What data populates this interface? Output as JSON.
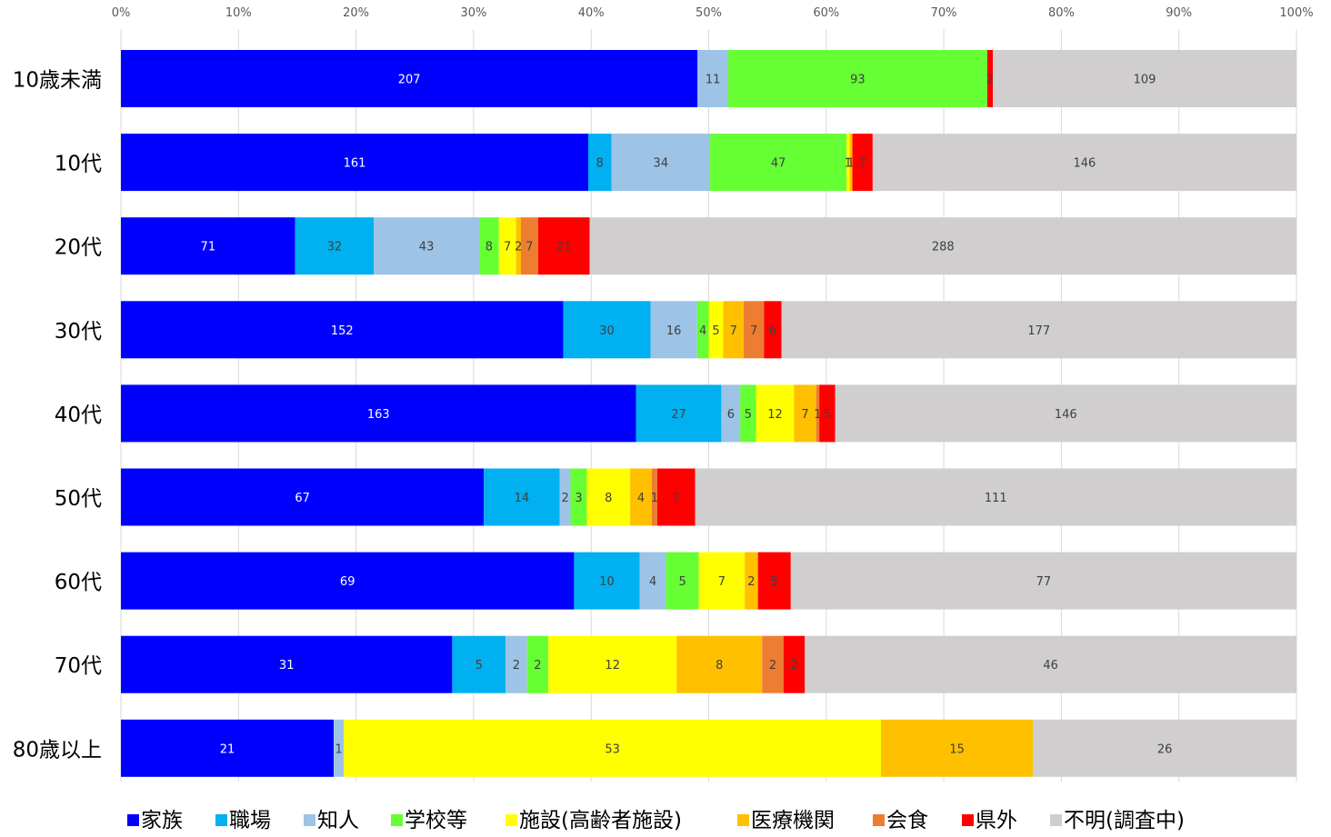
{
  "chart_data": {
    "type": "bar",
    "orientation": "horizontal",
    "stacking": "percent",
    "title": "",
    "xlabel": "",
    "ylabel": "",
    "xlim": [
      0,
      100
    ],
    "x_ticks": [
      "0%",
      "10%",
      "20%",
      "30%",
      "40%",
      "50%",
      "60%",
      "70%",
      "80%",
      "90%",
      "100%"
    ],
    "x_axis_position": "top",
    "grid": "vertical",
    "legend_position": "bottom",
    "categories": [
      "10歳未満",
      "10代",
      "20代",
      "30代",
      "40代",
      "50代",
      "60代",
      "70代",
      "80歳以上"
    ],
    "series": [
      {
        "name": "家族",
        "color": "#0000FF",
        "values": [
          207,
          161,
          71,
          152,
          163,
          67,
          69,
          31,
          21
        ]
      },
      {
        "name": "職場",
        "color": "#00B0F0",
        "values": [
          0,
          8,
          32,
          30,
          27,
          14,
          10,
          5,
          0
        ]
      },
      {
        "name": "知人",
        "color": "#9DC3E6",
        "values": [
          11,
          34,
          43,
          16,
          6,
          2,
          4,
          2,
          1
        ]
      },
      {
        "name": "学校等",
        "color": "#66FF33",
        "values": [
          93,
          47,
          8,
          4,
          5,
          3,
          5,
          2,
          0
        ]
      },
      {
        "name": "施設(高齢者施設)",
        "color": "#FFFF00",
        "values": [
          0,
          1,
          7,
          5,
          12,
          8,
          7,
          12,
          53
        ]
      },
      {
        "name": "医療機関",
        "color": "#FFC000",
        "values": [
          0,
          1,
          2,
          7,
          7,
          4,
          2,
          8,
          15
        ]
      },
      {
        "name": "会食",
        "color": "#ED7D31",
        "values": [
          0,
          0,
          7,
          7,
          1,
          1,
          0,
          2,
          0
        ]
      },
      {
        "name": "県外",
        "color": "#FF0000",
        "values": [
          2,
          7,
          21,
          6,
          5,
          7,
          5,
          2,
          0
        ]
      },
      {
        "name": "不明(調査中)",
        "color": "#D0CECE",
        "values": [
          109,
          146,
          288,
          177,
          146,
          111,
          77,
          46,
          26
        ]
      }
    ]
  },
  "label_colors": {
    "dark_segments": "#FFFFFF",
    "light_segments": "#404040"
  }
}
